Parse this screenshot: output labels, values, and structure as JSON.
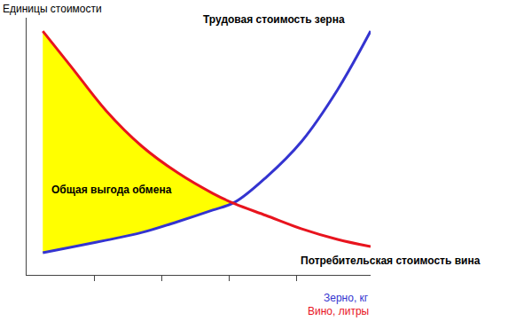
{
  "chart_data": {
    "type": "line",
    "x": [
      0.24,
      0.66,
      1.18,
      1.71,
      2.24,
      2.76,
      3.09,
      3.55,
      4.08,
      4.61,
      5.1
    ],
    "series": [
      {
        "name": "Трудовая стоимость зерна",
        "color": "#3434d0",
        "values": [
          0.86,
          1.08,
          1.35,
          1.65,
          2.07,
          2.52,
          2.83,
          3.79,
          5.2,
          7.2,
          9.48
        ]
      },
      {
        "name": "Потребительская стоимость вина",
        "color": "#e8141e",
        "values": [
          9.48,
          8.1,
          6.38,
          5.0,
          3.97,
          3.17,
          2.76,
          2.31,
          1.79,
          1.38,
          1.1
        ]
      }
    ],
    "xlim": [
      0,
      5.1
    ],
    "xticks": [
      1,
      2,
      3,
      4
    ],
    "ylim": [
      0,
      10
    ],
    "yticks": [],
    "tick_labels": false,
    "xlabel": [
      "Зерно, кг",
      "Вино, литры"
    ],
    "ylabel": "Единицы стоимости",
    "annotations": [
      "Общая выгода обмена"
    ],
    "color": "#ffff00"
  }
}
